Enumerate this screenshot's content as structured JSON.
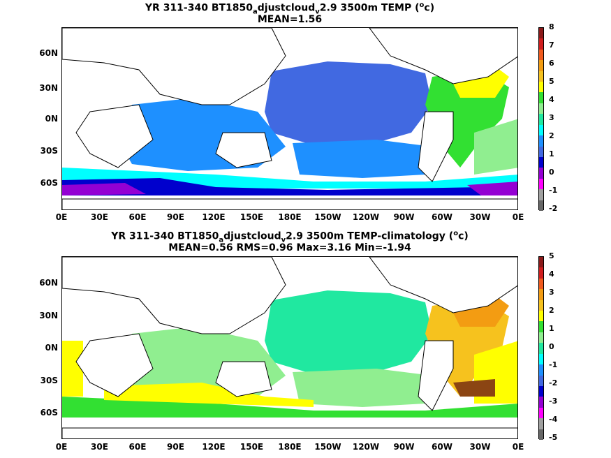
{
  "chart_data": [
    {
      "type": "heatmap",
      "title_parts": {
        "a": "YR 311-340 BT1850",
        "sub": "a",
        "b": "djustcloud",
        "sub2": "v",
        "c": "2.9 3500m TEMP (",
        "sup": "o",
        "d": "c)"
      },
      "subtitle": "MEAN=1.56",
      "x_ticks": [
        "0E",
        "30E",
        "60E",
        "90E",
        "120E",
        "150E",
        "180E",
        "150W",
        "120W",
        "90W",
        "60W",
        "30W",
        "0E"
      ],
      "y_ticks": [
        "60N",
        "30N",
        "0N",
        "30S",
        "60S"
      ],
      "colorbar": {
        "labels": [
          "8",
          "7",
          "6",
          "5",
          "4",
          "3",
          "2",
          "1",
          "0",
          "-1",
          "-2"
        ],
        "colors": [
          "#8b1a1a",
          "#d01e1e",
          "#f05a1e",
          "#f39c12",
          "#f6c21e",
          "#ffff00",
          "#32e032",
          "#90ee90",
          "#20e8a0",
          "#00ffff",
          "#1e90ff",
          "#4169e1",
          "#0000cd",
          "#9400d3",
          "#ff00ff",
          "#a0a0a0",
          "#666666"
        ]
      },
      "field_summary": "Pacific basin ~1-2 degC (blue), Atlantic 3-5 degC (green/yellow), Southern Ocean 0 to -1 degC (dark blue/purple)"
    },
    {
      "type": "heatmap",
      "title_parts": {
        "a": "YR 311-340 BT1850",
        "sub": "a",
        "b": "djustcloud",
        "sub2": "v",
        "c": "2.9 3500m TEMP-climatology (",
        "sup": "o",
        "d": "c)"
      },
      "subtitle": "MEAN=0.56   RMS=0.96   Max=3.16   Min=-1.94",
      "x_ticks": [
        "0E",
        "30E",
        "60E",
        "90E",
        "120E",
        "150E",
        "180E",
        "150W",
        "120W",
        "90W",
        "60W",
        "30W",
        "0E"
      ],
      "y_ticks": [
        "60N",
        "30N",
        "0N",
        "30S",
        "60S"
      ],
      "colorbar": {
        "labels": [
          "5",
          "4",
          "3",
          "2",
          "1",
          "0",
          "-1",
          "-2",
          "-3",
          "-4",
          "-5"
        ],
        "colors": [
          "#8b1a1a",
          "#d01e1e",
          "#f05a1e",
          "#f39c12",
          "#f6c21e",
          "#ffff00",
          "#32e032",
          "#90ee90",
          "#20e8a0",
          "#00ffff",
          "#1e90ff",
          "#4169e1",
          "#0000cd",
          "#9400d3",
          "#ff00ff",
          "#a0a0a0",
          "#666666"
        ]
      },
      "field_summary": "Pacific anomaly ~0 to 0.5 (sea green), Atlantic 1-3 (orange/yellow), Southern Ocean 0.5-1.5 (green/yellow)"
    }
  ]
}
